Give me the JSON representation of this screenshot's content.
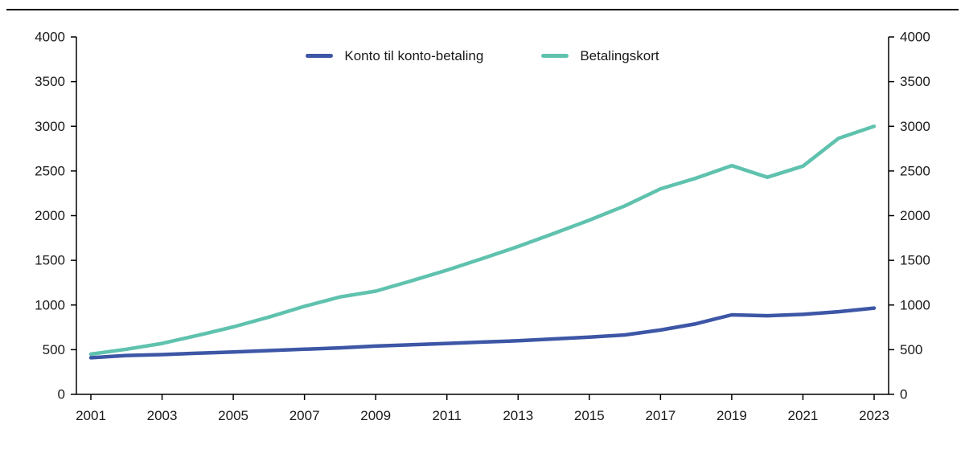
{
  "chart_data": {
    "type": "line",
    "title": "",
    "xlabel": "",
    "ylabel": "",
    "x": [
      2001,
      2002,
      2003,
      2004,
      2005,
      2006,
      2007,
      2008,
      2009,
      2010,
      2011,
      2012,
      2013,
      2014,
      2015,
      2016,
      2017,
      2018,
      2019,
      2020,
      2021,
      2022,
      2023
    ],
    "series": [
      {
        "name": "Konto til konto-betaling",
        "color": "#3d56a6",
        "values": [
          410,
          435,
          445,
          460,
          475,
          490,
          505,
          520,
          540,
          555,
          570,
          585,
          600,
          620,
          640,
          665,
          720,
          790,
          890,
          880,
          895,
          925,
          965
        ]
      },
      {
        "name": "Betalingskort",
        "color": "#5fc2ae",
        "values": [
          450,
          505,
          570,
          660,
          755,
          865,
          985,
          1090,
          1155,
          1270,
          1390,
          1520,
          1655,
          1800,
          1950,
          2110,
          2300,
          2420,
          2560,
          2430,
          2555,
          2865,
          3000
        ]
      }
    ],
    "ylim": [
      0,
      4000
    ],
    "ytick_step": 500,
    "ytick_labels": [
      "0",
      "500",
      "1000",
      "1500",
      "2000",
      "2500",
      "3000",
      "3500",
      "4000"
    ],
    "xtick_labels": [
      "2001",
      "2003",
      "2005",
      "2007",
      "2009",
      "2011",
      "2013",
      "2015",
      "2017",
      "2019",
      "2021",
      "2023"
    ],
    "legend_position": "top-center",
    "grid": false,
    "axes": {
      "left": true,
      "right": true,
      "bottom": true,
      "top_rule": true
    }
  }
}
